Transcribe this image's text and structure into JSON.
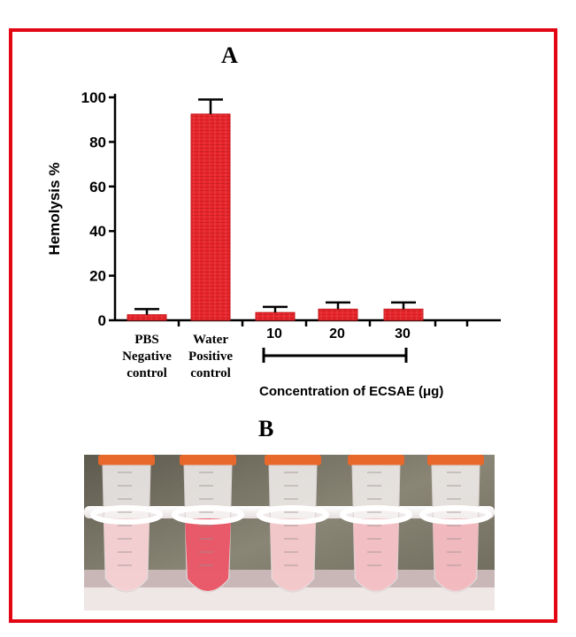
{
  "panel_a_label": "A",
  "panel_b_label": "B",
  "chart_data": {
    "type": "bar",
    "title": "",
    "ylabel": "Hemolysis %",
    "xlabel": "",
    "ylim": [
      0,
      100
    ],
    "yticks": [
      "0",
      "20",
      "40",
      "60",
      "80",
      "100"
    ],
    "categories": [
      [
        "PBS",
        "Negative",
        "control"
      ],
      [
        "Water",
        "Positive",
        "control"
      ],
      [
        "10"
      ],
      [
        "20"
      ],
      [
        "30"
      ]
    ],
    "values": [
      2.5,
      92.5,
      3.5,
      5,
      5
    ],
    "errors": [
      2.5,
      6.5,
      2.5,
      3,
      3
    ],
    "bracket_label": "Concentration  of ECSAE (μg)",
    "bar_color": "#e8262b"
  },
  "photo": {
    "description_icon": "test-tubes-photo",
    "colors": {
      "background": "#6f6a5c",
      "rack": "#f3eeee",
      "tube_light": "#f6e3e2",
      "tube_red": "#e84a5c",
      "cap": "#e8672a"
    },
    "tube_intensity": [
      0.15,
      1.0,
      0.2,
      0.25,
      0.3
    ]
  }
}
